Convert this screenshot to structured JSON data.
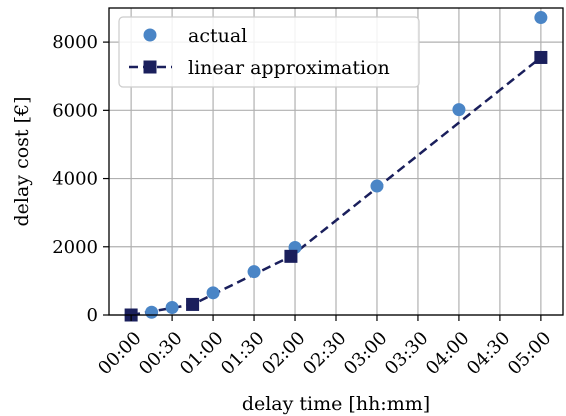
{
  "chart_data": {
    "type": "line",
    "xlabel": "delay time [hh:mm]",
    "ylabel": "delay cost [€]",
    "x_tick_labels": [
      "00:00",
      "00:30",
      "01:00",
      "01:30",
      "02:00",
      "02:30",
      "03:00",
      "03:30",
      "04:00",
      "04:30",
      "05:00"
    ],
    "y_ticks": [
      0,
      2000,
      4000,
      6000,
      8000
    ],
    "y_tick_labels": [
      "0",
      "2000",
      "4000",
      "6000",
      "8000"
    ],
    "xlim": [
      -0.27,
      5.27
    ],
    "ylim": [
      0,
      9000
    ],
    "grid": true,
    "legend_position": "top-left",
    "series": [
      {
        "name": "actual",
        "style": "markers",
        "marker": "circle",
        "color": "#4a85c6",
        "points": [
          {
            "x": 0.0,
            "y": 0
          },
          {
            "x": 0.25,
            "y": 80
          },
          {
            "x": 0.5,
            "y": 220
          },
          {
            "x": 1.0,
            "y": 650
          },
          {
            "x": 1.5,
            "y": 1270
          },
          {
            "x": 2.0,
            "y": 1980
          },
          {
            "x": 3.0,
            "y": 3780
          },
          {
            "x": 4.0,
            "y": 6020
          },
          {
            "x": 5.0,
            "y": 8720
          }
        ]
      },
      {
        "name": "linear approximation",
        "style": "dashed-line-markers",
        "marker": "square",
        "color": "#1a1f5c",
        "points": [
          {
            "x": 0.0,
            "y": 0
          },
          {
            "x": 0.75,
            "y": 310
          },
          {
            "x": 1.95,
            "y": 1720
          },
          {
            "x": 5.0,
            "y": 7550
          }
        ]
      }
    ]
  }
}
